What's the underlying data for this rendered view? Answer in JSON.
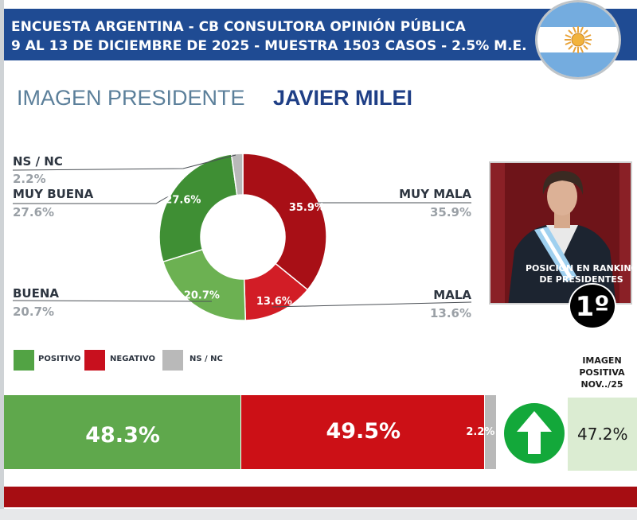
{
  "header": {
    "line1": "ENCUESTA ARGENTINA - CB CONSULTORA OPINIÓN PÚBLICA",
    "line2": "9 AL 13 DE DICIEMBRE DE 2025 - MUESTRA 1503 CASOS - 2.5% M.E."
  },
  "title": {
    "left": "IMAGEN PRESIDENTE",
    "right": "JAVIER MILEI"
  },
  "labels": {
    "ns_nc": {
      "name": "NS / NC",
      "value": "2.2%"
    },
    "muy_buena": {
      "name": "MUY BUENA",
      "value": "27.6%"
    },
    "buena": {
      "name": "BUENA",
      "value": "20.7%"
    },
    "muy_mala": {
      "name": "MUY MALA",
      "value": "35.9%"
    },
    "mala": {
      "name": "MALA",
      "value": "13.6%"
    }
  },
  "legend": [
    {
      "label": "POSITIVO",
      "color": "#52a344"
    },
    {
      "label": "NEGATIVO",
      "color": "#c8101e"
    },
    {
      "label": "NS / NC",
      "color": "#b9b9b9"
    }
  ],
  "colors": {
    "muy_buena": "#3f8f34",
    "buena": "#6cb152",
    "muy_mala": "#a80f16",
    "mala": "#d21d26",
    "ns_nc": "#b9b9b9",
    "positivo": "#5fa84c",
    "negativo": "#cc1016"
  },
  "summary_bar": {
    "positivo": {
      "value": 48.3,
      "label": "48.3%"
    },
    "negativo": {
      "value": 49.5,
      "label": "49.5%"
    },
    "ns_nc": {
      "value": 2.2,
      "label": "2.2%"
    }
  },
  "previous": {
    "title_lines": [
      "IMAGEN",
      "POSITIVA",
      "NOV../25"
    ],
    "value": "47.2%",
    "arrow_icon": "arrow-up-icon"
  },
  "ranking": {
    "caption_lines": [
      "POSICIÓN EN RANKING",
      "DE PRESIDENTES"
    ],
    "value": "1º"
  },
  "chart_data": {
    "type": "pie",
    "title": "IMAGEN PRESIDENTE JAVIER MILEI",
    "categories": [
      "MUY MALA",
      "MALA",
      "BUENA",
      "MUY BUENA",
      "NS / NC"
    ],
    "values": [
      35.9,
      13.6,
      20.7,
      27.6,
      2.2
    ],
    "data_labels": [
      "35.9%",
      "13.6%",
      "20.7%",
      "27.6%",
      ""
    ],
    "legend": [
      "POSITIVO",
      "NEGATIVO",
      "NS / NC"
    ]
  }
}
